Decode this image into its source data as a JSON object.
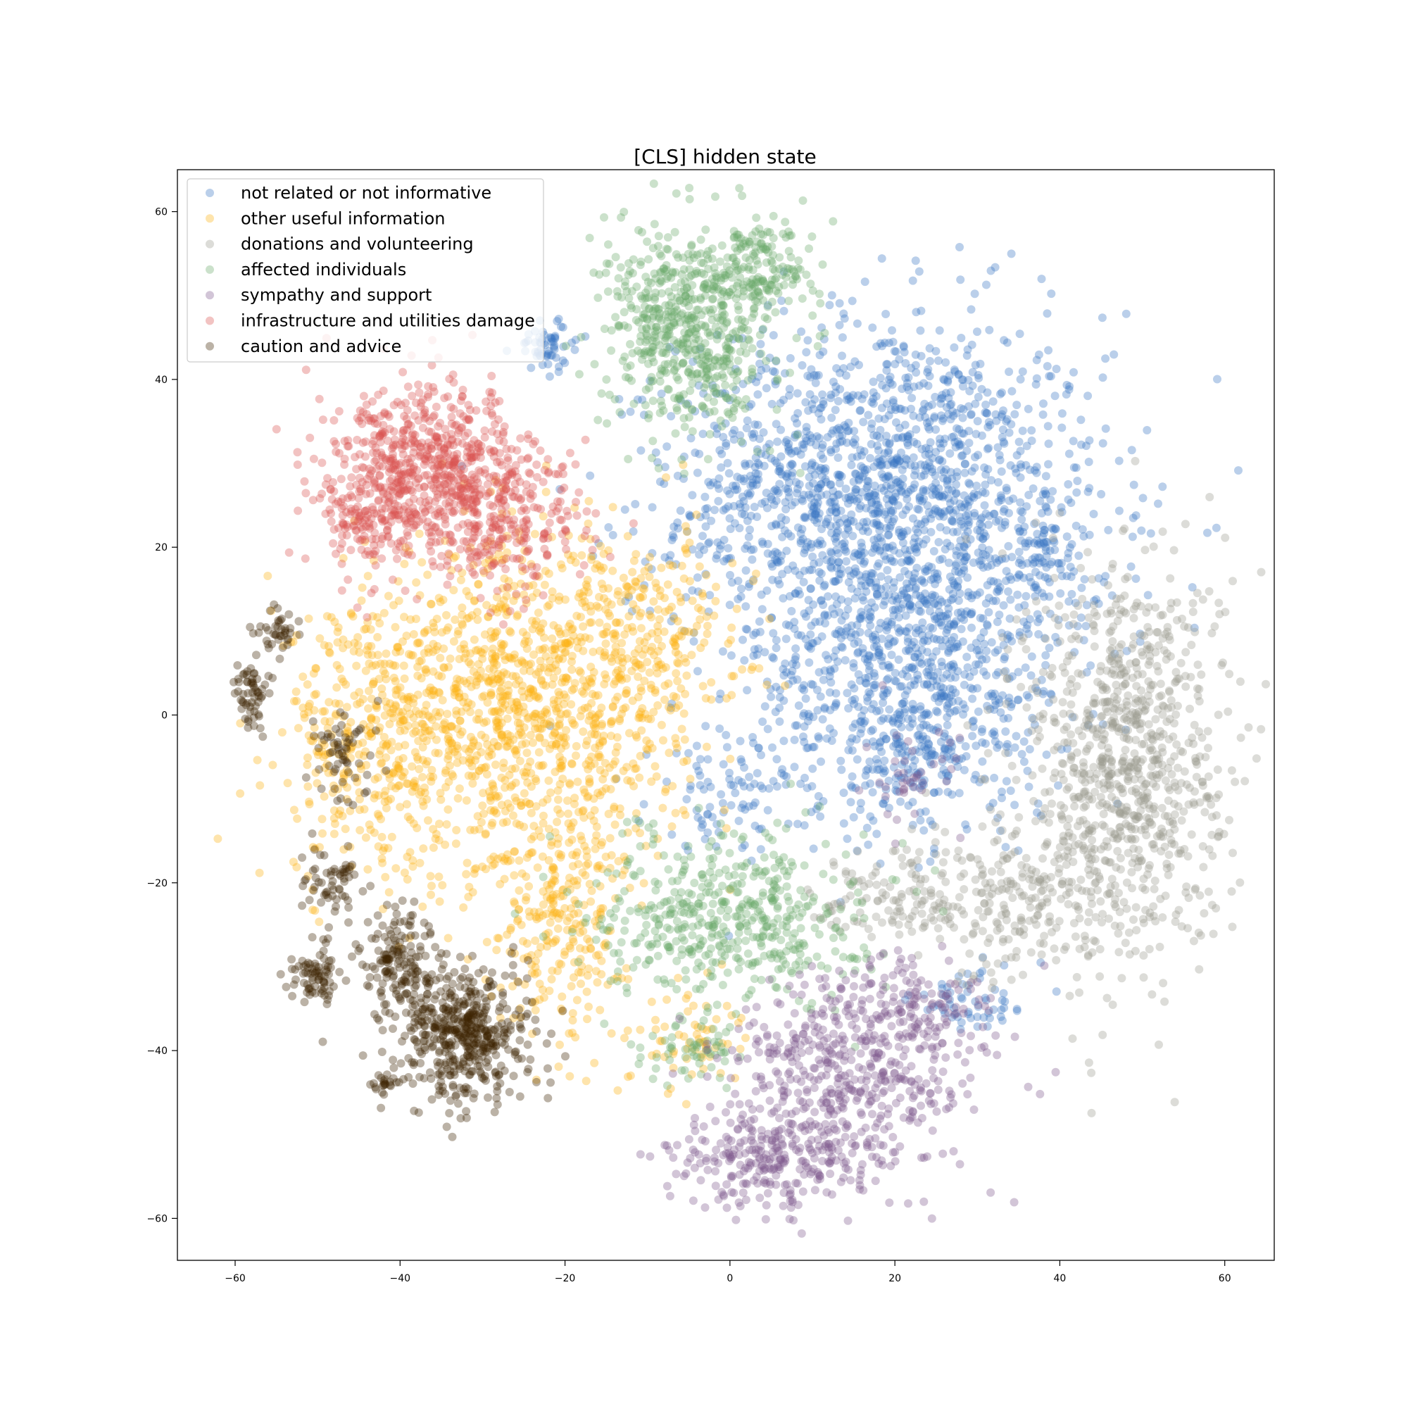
{
  "chart_data": {
    "type": "scatter",
    "title": "[CLS] hidden state",
    "xlabel": "",
    "ylabel": "",
    "xlim": [
      -67,
      66
    ],
    "ylim": [
      -65,
      65
    ],
    "xticks": [
      -60,
      -40,
      -20,
      0,
      20,
      40,
      60
    ],
    "yticks": [
      -60,
      -40,
      -20,
      0,
      20,
      40,
      60
    ],
    "grid": false,
    "legend_position": "top-left",
    "series": [
      {
        "name": "not related or not informative",
        "color": "#3a75c4",
        "clusters": [
          {
            "cx": 20,
            "cy": 24,
            "sx": 13,
            "sy": 12,
            "n": 1500
          },
          {
            "cx": 13,
            "cy": 30,
            "sx": 10,
            "sy": 6,
            "n": 300
          },
          {
            "cx": 22,
            "cy": 5,
            "sx": 10,
            "sy": 8,
            "n": 500
          },
          {
            "cx": 22,
            "cy": -5,
            "sx": 6,
            "sy": 5,
            "n": 200
          },
          {
            "cx": -22,
            "cy": 44,
            "sx": 2,
            "sy": 1.5,
            "n": 60
          },
          {
            "cx": 0,
            "cy": -10,
            "sx": 5,
            "sy": 3,
            "n": 80
          },
          {
            "cx": 38,
            "cy": 18,
            "sx": 3,
            "sy": 3,
            "n": 60
          },
          {
            "cx": 30,
            "cy": -34,
            "sx": 4,
            "sy": 2,
            "n": 60
          }
        ]
      },
      {
        "name": "other useful information",
        "color": "#fbb112",
        "clusters": [
          {
            "cx": -26,
            "cy": 0,
            "sx": 10,
            "sy": 10,
            "n": 1200
          },
          {
            "cx": -44,
            "cy": -3,
            "sx": 5,
            "sy": 8,
            "n": 280
          },
          {
            "cx": -20,
            "cy": -24,
            "sx": 4,
            "sy": 7,
            "n": 240
          },
          {
            "cx": -10,
            "cy": 10,
            "sx": 6,
            "sy": 6,
            "n": 200
          },
          {
            "cx": -5,
            "cy": -38,
            "sx": 3,
            "sy": 3,
            "n": 60
          }
        ]
      },
      {
        "name": "donations and volunteering",
        "color": "#9b9a8e",
        "clusters": [
          {
            "cx": 48,
            "cy": -5,
            "sx": 6,
            "sy": 12,
            "n": 900
          },
          {
            "cx": 34,
            "cy": -22,
            "sx": 7,
            "sy": 5,
            "n": 250
          },
          {
            "cx": 20,
            "cy": -22,
            "sx": 5,
            "sy": 3,
            "n": 100
          }
        ]
      },
      {
        "name": "affected individuals",
        "color": "#6aa86a",
        "clusters": [
          {
            "cx": -5,
            "cy": 46,
            "sx": 5,
            "sy": 6,
            "n": 600
          },
          {
            "cx": 4,
            "cy": 53,
            "sx": 3,
            "sy": 3,
            "n": 150
          },
          {
            "cx": 0,
            "cy": -24,
            "sx": 8,
            "sy": 5,
            "n": 500
          },
          {
            "cx": -4,
            "cy": -40,
            "sx": 3,
            "sy": 2,
            "n": 60
          }
        ]
      },
      {
        "name": "sympathy and support",
        "color": "#7d5a8c",
        "clusters": [
          {
            "cx": 15,
            "cy": -43,
            "sx": 8,
            "sy": 6,
            "n": 500
          },
          {
            "cx": 4,
            "cy": -53,
            "sx": 6,
            "sy": 3,
            "n": 250
          },
          {
            "cx": 22,
            "cy": -35,
            "sx": 5,
            "sy": 3,
            "n": 120
          },
          {
            "cx": 22,
            "cy": -8,
            "sx": 3,
            "sy": 3,
            "n": 40
          }
        ]
      },
      {
        "name": "infrastructure and utilities damage",
        "color": "#d9534f",
        "clusters": [
          {
            "cx": -36,
            "cy": 29,
            "sx": 6,
            "sy": 5,
            "n": 700
          },
          {
            "cx": -26,
            "cy": 22,
            "sx": 5,
            "sy": 4,
            "n": 200
          },
          {
            "cx": -44,
            "cy": 24,
            "sx": 3,
            "sy": 4,
            "n": 120
          }
        ]
      },
      {
        "name": "caution and advice",
        "color": "#3d2200",
        "clusters": [
          {
            "cx": -32,
            "cy": -38,
            "sx": 4,
            "sy": 4,
            "n": 500
          },
          {
            "cx": -40,
            "cy": -29,
            "sx": 2,
            "sy": 3,
            "n": 150
          },
          {
            "cx": -50,
            "cy": -31,
            "sx": 1.5,
            "sy": 2,
            "n": 80
          },
          {
            "cx": -48,
            "cy": -20,
            "sx": 2,
            "sy": 2,
            "n": 60
          },
          {
            "cx": -58,
            "cy": 3,
            "sx": 1,
            "sy": 2,
            "n": 60
          },
          {
            "cx": -55,
            "cy": 10,
            "sx": 1.2,
            "sy": 1.5,
            "n": 40
          },
          {
            "cx": -47,
            "cy": -5,
            "sx": 2,
            "sy": 3,
            "n": 60
          },
          {
            "cx": -42,
            "cy": -44,
            "sx": 1,
            "sy": 1,
            "n": 20
          }
        ]
      }
    ]
  }
}
